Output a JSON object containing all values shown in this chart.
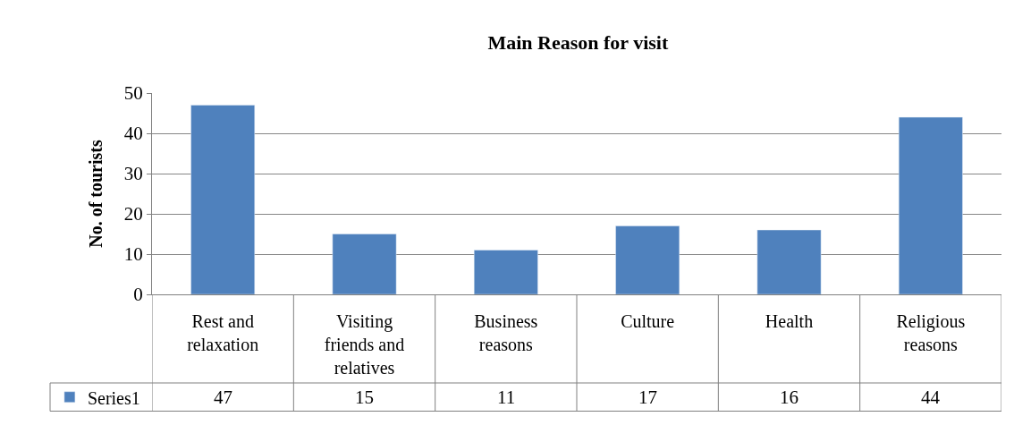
{
  "chart_data": {
    "type": "bar",
    "title": "Main Reason for visit",
    "ylabel": "No. of tourists",
    "categories": [
      "Rest and relaxation",
      "Visiting friends and relatives",
      "Business reasons",
      "Culture",
      "Health",
      "Religious reasons"
    ],
    "series": [
      {
        "name": "Series1",
        "color": "#4f81bd",
        "values": [
          47,
          15,
          11,
          17,
          16,
          44
        ]
      }
    ],
    "ylim": [
      0,
      50
    ],
    "yticks": [
      0,
      10,
      20,
      30,
      40,
      50
    ],
    "grid": "y",
    "legend": "bottom",
    "data_labels": true
  }
}
